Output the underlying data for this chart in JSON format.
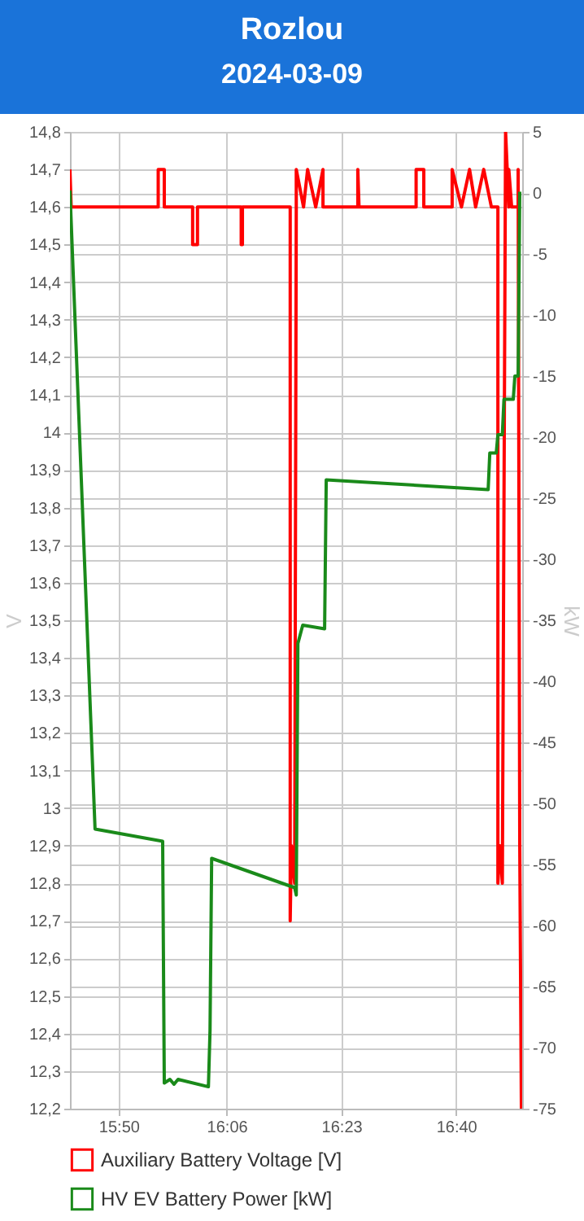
{
  "chart_data": {
    "type": "line",
    "title": "Rozlou",
    "subtitle": "2024-03-09",
    "ylabel": "V",
    "y2label": "kW",
    "xlim": [
      15.713,
      16.83
    ],
    "xticks": [
      {
        "value": 15.8333,
        "label": "15:50"
      },
      {
        "value": 16.1,
        "label": "16:06"
      },
      {
        "value": 16.3833,
        "label": "16:23"
      },
      {
        "value": 16.6667,
        "label": "16:40"
      }
    ],
    "ylim": [
      12.2,
      14.8
    ],
    "yticks": [
      {
        "value": 12.2,
        "label": "12,2"
      },
      {
        "value": 12.3,
        "label": "12,3"
      },
      {
        "value": 12.4,
        "label": "12,4"
      },
      {
        "value": 12.5,
        "label": "12,5"
      },
      {
        "value": 12.6,
        "label": "12,6"
      },
      {
        "value": 12.7,
        "label": "12,7"
      },
      {
        "value": 12.8,
        "label": "12,8"
      },
      {
        "value": 12.9,
        "label": "12,9"
      },
      {
        "value": 13,
        "label": "13"
      },
      {
        "value": 13.1,
        "label": "13,1"
      },
      {
        "value": 13.2,
        "label": "13,2"
      },
      {
        "value": 13.3,
        "label": "13,3"
      },
      {
        "value": 13.4,
        "label": "13,4"
      },
      {
        "value": 13.5,
        "label": "13,5"
      },
      {
        "value": 13.6,
        "label": "13,6"
      },
      {
        "value": 13.7,
        "label": "13,7"
      },
      {
        "value": 13.8,
        "label": "13,8"
      },
      {
        "value": 13.9,
        "label": "13,9"
      },
      {
        "value": 14,
        "label": "14"
      },
      {
        "value": 14.1,
        "label": "14,1"
      },
      {
        "value": 14.2,
        "label": "14,2"
      },
      {
        "value": 14.3,
        "label": "14,3"
      },
      {
        "value": 14.4,
        "label": "14,4"
      },
      {
        "value": 14.5,
        "label": "14,5"
      },
      {
        "value": 14.6,
        "label": "14,6"
      },
      {
        "value": 14.7,
        "label": "14,7"
      },
      {
        "value": 14.8,
        "label": "14,8"
      }
    ],
    "y2lim": [
      -75,
      5
    ],
    "y2ticks": [
      5,
      0,
      -5,
      -10,
      -15,
      -20,
      -25,
      -30,
      -35,
      -40,
      -45,
      -50,
      -55,
      -60,
      -65,
      -70,
      -75
    ],
    "grid": true,
    "legend": "bottom",
    "series": [
      {
        "name": "Auxiliary Battery Voltage [V]",
        "color": "#ff0000",
        "x": [
          15.713,
          15.716,
          15.931,
          15.931,
          15.946,
          15.946,
          16.016,
          16.016,
          16.028,
          16.028,
          16.136,
          16.136,
          16.139,
          16.139,
          16.257,
          16.257,
          16.26,
          16.268,
          16.272,
          16.272,
          16.29,
          16.3,
          16.32,
          16.338,
          16.338,
          16.424,
          16.424,
          16.427,
          16.568,
          16.568,
          16.587,
          16.587,
          16.657,
          16.657,
          16.68,
          16.7,
          16.715,
          16.735,
          16.754,
          16.77,
          16.77,
          16.775,
          16.781,
          16.789,
          16.797,
          16.797,
          16.804,
          16.82,
          16.82,
          16.824,
          16.828
        ],
        "values": [
          14.7,
          14.6,
          14.6,
          14.7,
          14.7,
          14.6,
          14.6,
          14.5,
          14.5,
          14.6,
          14.6,
          14.5,
          14.5,
          14.6,
          14.6,
          12.7,
          12.9,
          12.8,
          14.6,
          14.7,
          14.6,
          14.7,
          14.6,
          14.7,
          14.6,
          14.6,
          14.7,
          14.6,
          14.6,
          14.7,
          14.7,
          14.6,
          14.6,
          14.7,
          14.6,
          14.7,
          14.6,
          14.7,
          14.6,
          14.6,
          12.8,
          12.9,
          12.8,
          14.8,
          14.6,
          14.7,
          14.6,
          14.6,
          14.7,
          12.9,
          12.2
        ]
      },
      {
        "name": "HV EV Battery Power [kW]",
        "color": "#1a8a1a",
        "axis": "y2",
        "x": [
          15.713,
          15.775,
          15.942,
          15.946,
          15.96,
          15.97,
          15.98,
          16.055,
          16.059,
          16.063,
          16.268,
          16.272,
          16.276,
          16.288,
          16.342,
          16.346,
          16.746,
          16.75,
          16.766,
          16.77,
          16.781,
          16.785,
          16.808,
          16.812,
          16.82,
          16.824
        ],
        "values": [
          0.2,
          -52.1,
          -53.1,
          -72.9,
          -72.6,
          -73.0,
          -72.6,
          -73.2,
          -68.6,
          -54.5,
          -56.9,
          -57.5,
          -36.9,
          -35.4,
          -35.7,
          -23.5,
          -24.3,
          -21.3,
          -21.3,
          -19.8,
          -19.8,
          -16.9,
          -16.9,
          -15.0,
          -15.0,
          0.1
        ]
      }
    ]
  }
}
